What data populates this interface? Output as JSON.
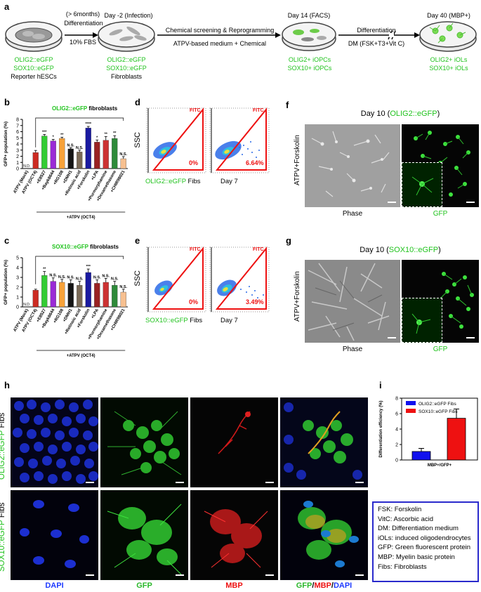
{
  "panel_letters": {
    "a": "a",
    "b": "b",
    "c": "c",
    "d": "d",
    "e": "e",
    "f": "f",
    "g": "g",
    "h": "h",
    "i": "i"
  },
  "workflow": {
    "steps": [
      {
        "top1": "(> 6months)",
        "top2": "Differentiation",
        "below": "10% FBS"
      },
      {
        "top": "Day -2 (Infection)",
        "l1": "OLIG2::eGFP",
        "l2": "SOX10::eGFP",
        "l3": "Fibroblasts"
      },
      {
        "top": "Day 14 (FACS)",
        "arrow_top": "Chemical screening & Reprogramming",
        "arrow_bottom": "ATPV-based medium + Chemical",
        "l1": "OLIG2+ iOPCs",
        "l2": "SOX10+ iOPCs"
      },
      {
        "top": "Day 40 (MBP+)",
        "arrow_top": "Differentiation",
        "arrow_bottom": "DM (FSK+T3+Vit C)",
        "l1": "OLIG2+ iOLs",
        "l2": "SOX10+ iOLs"
      }
    ],
    "start": {
      "l1": "OLIG2::eGFP",
      "l2": "SOX10::eGFP",
      "l3": "Reporter hESCs"
    }
  },
  "chart_b": {
    "title_green": "OLIG2::eGFP",
    "title_black": " fibroblasts",
    "ylabel": "GFP+ population (%)",
    "xgroup": "+ATPV (OCT4)",
    "chart_data": {
      "type": "bar",
      "categories": [
        "ATPV (Mock)",
        "ATPV (OCT4)",
        "+E8527",
        "+Bayk8644",
        "+RG108",
        "+DMH1",
        "+Retinoic acid",
        "+Forskolin",
        "+LPA",
        "+Purmorphamine",
        "+Dexamethasone",
        "+CHIR98021"
      ],
      "values": [
        0,
        2.6,
        5.3,
        4.5,
        4.9,
        3.2,
        2.7,
        6.6,
        4.3,
        4.6,
        4.9,
        1.6
      ],
      "errors": [
        0,
        0.35,
        0.25,
        0.25,
        0.2,
        0.2,
        0.3,
        0.25,
        0.35,
        0.6,
        0.45,
        0.35
      ],
      "sig": [
        "N.D.",
        "",
        "***",
        "*",
        "**",
        "N.S.",
        "N.S.",
        "****",
        "*",
        "**",
        "**",
        "N.S."
      ],
      "colors": [
        "#ffffff",
        "#cc2b22",
        "#33cc33",
        "#9a2ad6",
        "#f7a23a",
        "#151515",
        "#7a6a57",
        "#1a1aa0",
        "#992222",
        "#cc3333",
        "#2e8a3a",
        "#f7c090"
      ],
      "yticks": [
        0,
        1,
        2,
        3,
        4,
        5,
        6,
        7,
        8
      ],
      "ylim": [
        0,
        8
      ]
    }
  },
  "chart_c": {
    "title_green": "SOX10::eGFP",
    "title_black": " fibroblasts",
    "ylabel": "GFP+ population (%)",
    "xgroup": "+ATPV (OCT4)",
    "chart_data": {
      "type": "bar",
      "categories": [
        "ATPV (Mock)",
        "ATPV (OCT4)",
        "+E8527",
        "+Bayk8644",
        "+RG108",
        "+DMH1",
        "+Retinoic acid",
        "+Forskolin",
        "+LPA",
        "+Purmorphamine",
        "+Dexamethasone",
        "+CHIR98021"
      ],
      "values": [
        0,
        1.7,
        3.2,
        2.6,
        2.5,
        2.4,
        2.2,
        3.5,
        2.4,
        2.5,
        2.2,
        1.5
      ],
      "errors": [
        0,
        0.1,
        0.4,
        0.35,
        0.3,
        0.35,
        0.4,
        0.35,
        0.35,
        0.4,
        0.4,
        0.3
      ],
      "sig": [
        "N.D.",
        "",
        "**",
        "N.S.",
        "N.S.",
        "N.S.",
        "N.S.",
        "***",
        "N.S.",
        "N.S.",
        "N.S.",
        "N.S."
      ],
      "colors": [
        "#ffffff",
        "#cc2b22",
        "#33cc33",
        "#9a2ad6",
        "#f7a23a",
        "#151515",
        "#7a6a57",
        "#1a1aa0",
        "#992222",
        "#cc3333",
        "#2e8a3a",
        "#f7c090"
      ],
      "yticks": [
        0,
        1,
        2,
        3,
        4,
        5
      ],
      "ylim": [
        0,
        5
      ]
    }
  },
  "facs_d": {
    "ylabel": "SSC",
    "gate": "FITC",
    "left_pct": "0%",
    "right_pct": "6.64%",
    "left_label_green": "OLIG2::eGFP",
    "left_label_black": " Fibs",
    "right_label": "Day 7"
  },
  "facs_e": {
    "ylabel": "SSC",
    "gate": "FITC",
    "left_pct": "0%",
    "right_pct": "3.49%",
    "left_label_green": "SOX10::eGFP",
    "left_label_black": " Fibs",
    "right_label": "Day 7"
  },
  "panel_f": {
    "title_a": "Day 10 (",
    "title_green": "OLIG2::eGFP",
    "title_b": ")",
    "side": "ATPV+Forskolin",
    "phase": "Phase",
    "gfp": "GFP"
  },
  "panel_g": {
    "title_a": "Day 10 (",
    "title_green": "SOX10::eGFP",
    "title_b": ")",
    "side": "ATPV+Forskolin",
    "phase": "Phase",
    "gfp": "GFP"
  },
  "panel_h": {
    "row1_green": "OLIG2::eGFP",
    "row1_black": " Fibs",
    "row2_green": "SOX10::eGFP",
    "row2_black": " Fibs",
    "cols": {
      "dapi": "DAPI",
      "gfp": "GFP",
      "mbp": "MBP",
      "merge_gfp": "GFP",
      "slash1": "/",
      "merge_mbp": "MBP",
      "slash2": "/",
      "merge_dapi": "DAPI"
    }
  },
  "chart_i": {
    "ylabel": "Differentiation efficiency (%)",
    "xlabel": "MBP+/GFP+",
    "chart_data": {
      "type": "bar",
      "series": [
        {
          "name": "OLIG2::eGFP Fibs",
          "values": [
            1.1
          ],
          "error": 0.4,
          "color": "#1111ee"
        },
        {
          "name": "SOX10::eGFP Fibs",
          "values": [
            5.4
          ],
          "error": 1.2,
          "color": "#ee1111"
        }
      ],
      "yticks": [
        0,
        2,
        4,
        6,
        8
      ],
      "ylim": [
        0,
        8
      ]
    }
  },
  "abbrev": [
    "FSK: Forskolin",
    "VitC: Ascorbic acid",
    "DM: Differentiation medium",
    "iOLs: induced oligodendrocytes",
    "GFP: Green fluorescent protein",
    "MBP: Myelin basic protein",
    "Fibs: Fibroblasts"
  ]
}
